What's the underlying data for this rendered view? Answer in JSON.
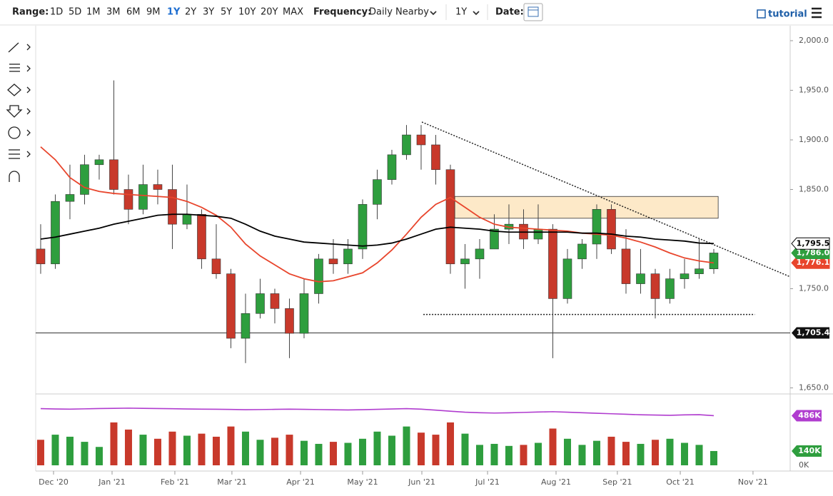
{
  "toolbar": {
    "range_label": "Range:",
    "ranges": [
      "1D",
      "5D",
      "1M",
      "3M",
      "6M",
      "9M",
      "1Y",
      "2Y",
      "3Y",
      "5Y",
      "10Y",
      "20Y",
      "MAX"
    ],
    "active_range": 6,
    "frequency_label": "Frequency:",
    "frequency": "Daily Nearby",
    "period": "1Y",
    "date_label": "Date:",
    "tutorial": "tutorial"
  },
  "chart_data": {
    "type": "candlestick",
    "xlim": [
      -0.34,
      51.22
    ],
    "xticks": [
      {
        "value": 0.88,
        "label": "Dec '20"
      },
      {
        "value": 4.88,
        "label": "Jan '21"
      },
      {
        "value": 9.17,
        "label": "Feb '21"
      },
      {
        "value": 13.07,
        "label": "Mar '21"
      },
      {
        "value": 17.76,
        "label": "Apr '21"
      },
      {
        "value": 22.0,
        "label": "May '21"
      },
      {
        "value": 26.05,
        "label": "Jun '21"
      },
      {
        "value": 30.54,
        "label": "Jul '21"
      },
      {
        "value": 35.22,
        "label": "Aug '21"
      },
      {
        "value": 39.41,
        "label": "Sep '21"
      },
      {
        "value": 43.71,
        "label": "Oct '21"
      },
      {
        "value": 48.68,
        "label": "Nov '21"
      }
    ],
    "ylim": [
      1643.9,
      2010.8
    ],
    "yticks": [
      {
        "value": 1650,
        "label": "1,650.0"
      },
      {
        "value": 1750,
        "label": "1,750.0"
      },
      {
        "value": 1850,
        "label": "1,850.0"
      },
      {
        "value": 1900,
        "label": "1,900.0"
      },
      {
        "value": 1950,
        "label": "1,950.0"
      },
      {
        "value": 2000,
        "label": "2,000.0"
      }
    ],
    "up_color": "#2e9e3e",
    "down_color": "#c8392b",
    "open": [
      1790,
      1775,
      1838,
      1845,
      1875,
      1880,
      1850,
      1830,
      1855,
      1850,
      1815,
      1825,
      1780,
      1765,
      1700,
      1725,
      1745,
      1730,
      1705,
      1745,
      1780,
      1775,
      1790,
      1835,
      1860,
      1885,
      1905,
      1895,
      1870,
      1775,
      1780,
      1790,
      1810,
      1815,
      1800,
      1810,
      1740,
      1780,
      1795,
      1830,
      1790,
      1755,
      1765,
      1740,
      1760,
      1765,
      1770
    ],
    "high": [
      1815,
      1845,
      1875,
      1885,
      1885,
      1960,
      1865,
      1875,
      1870,
      1875,
      1855,
      1830,
      1815,
      1770,
      1745,
      1760,
      1750,
      1740,
      1760,
      1785,
      1800,
      1800,
      1840,
      1870,
      1890,
      1915,
      1915,
      1905,
      1875,
      1795,
      1800,
      1825,
      1835,
      1830,
      1835,
      1815,
      1790,
      1800,
      1835,
      1835,
      1810,
      1790,
      1770,
      1770,
      1780,
      1800,
      1790
    ],
    "low": [
      1765,
      1770,
      1820,
      1835,
      1860,
      1845,
      1815,
      1825,
      1835,
      1790,
      1810,
      1770,
      1760,
      1690,
      1675,
      1720,
      1715,
      1680,
      1700,
      1735,
      1765,
      1765,
      1780,
      1820,
      1855,
      1880,
      1870,
      1855,
      1765,
      1750,
      1760,
      1790,
      1795,
      1790,
      1795,
      1680,
      1735,
      1770,
      1780,
      1785,
      1745,
      1745,
      1720,
      1735,
      1750,
      1760,
      1765
    ],
    "close": [
      1775,
      1838,
      1845,
      1875,
      1880,
      1850,
      1830,
      1855,
      1850,
      1815,
      1825,
      1780,
      1765,
      1700,
      1725,
      1745,
      1730,
      1705,
      1745,
      1780,
      1775,
      1790,
      1835,
      1860,
      1885,
      1905,
      1895,
      1870,
      1775,
      1780,
      1790,
      1810,
      1815,
      1800,
      1810,
      1740,
      1780,
      1795,
      1830,
      1790,
      1755,
      1765,
      1740,
      1760,
      1765,
      1770,
      1786
    ],
    "series": [
      {
        "color": "#e8452c",
        "values": [
          1893,
          1880,
          1862,
          1852,
          1848,
          1846,
          1845,
          1844,
          1843,
          1842,
          1838,
          1832,
          1824,
          1812,
          1795,
          1783,
          1774,
          1765,
          1760,
          1757,
          1758,
          1762,
          1766,
          1776,
          1789,
          1805,
          1822,
          1835,
          1842,
          1832,
          1822,
          1815,
          1812,
          1811,
          1810,
          1809,
          1808,
          1806,
          1805,
          1804,
          1801,
          1797,
          1792,
          1786,
          1781,
          1778,
          1776
        ]
      },
      {
        "color": "#000000",
        "values": [
          1800,
          1802,
          1805,
          1808,
          1811,
          1815,
          1818,
          1821,
          1824,
          1825,
          1825,
          1824,
          1823,
          1821,
          1815,
          1808,
          1803,
          1800,
          1797,
          1796,
          1795,
          1794,
          1793,
          1794,
          1796,
          1800,
          1805,
          1810,
          1812,
          1811,
          1810,
          1808,
          1807,
          1807,
          1807,
          1807,
          1807,
          1806,
          1806,
          1805,
          1803,
          1802,
          1800,
          1799,
          1798,
          1796,
          1795.5
        ]
      }
    ],
    "last_labels": [
      {
        "value": 1776.1,
        "label": "1,776.1",
        "bg": "#e8452c",
        "fg": "#ffffff"
      },
      {
        "value": 1786.0,
        "label": "1,786.0",
        "bg": "#2e9e3e",
        "fg": "#ffffff"
      },
      {
        "value": 1795.5,
        "label": "1,795.5",
        "bg": "#ffffff",
        "fg": "#000000"
      }
    ],
    "level": {
      "value": 1705.4,
      "label": "1,705.4"
    },
    "zone": {
      "x": [
        28.3,
        46.3
      ],
      "y": [
        1821,
        1843
      ],
      "color": "#fde9c8"
    },
    "trendline": {
      "x": [
        26.05,
        51.22
      ],
      "y": [
        1918,
        1762
      ]
    },
    "support": {
      "x": [
        26.15,
        48.8
      ],
      "y": [
        1724,
        1724
      ]
    },
    "volume": {
      "ylim": [
        0,
        622
      ],
      "yticks": [
        {
          "value": 0,
          "label": "0K"
        }
      ],
      "values": [
        250,
        300,
        280,
        230,
        180,
        420,
        350,
        300,
        260,
        330,
        290,
        310,
        280,
        380,
        330,
        250,
        270,
        300,
        240,
        210,
        230,
        220,
        260,
        330,
        290,
        380,
        320,
        300,
        420,
        310,
        200,
        210,
        190,
        200,
        220,
        360,
        260,
        200,
        240,
        280,
        230,
        210,
        250,
        260,
        220,
        200,
        140
      ],
      "ma_color": "#b03ccf",
      "ma": [
        555,
        552,
        550,
        553,
        556,
        558,
        560,
        558,
        556,
        554,
        552,
        550,
        549,
        547,
        545,
        546,
        548,
        550,
        548,
        546,
        544,
        542,
        545,
        548,
        552,
        555,
        550,
        540,
        530,
        520,
        515,
        512,
        514,
        518,
        522,
        525,
        520,
        515,
        510,
        505,
        500,
        495,
        492,
        490,
        494,
        496,
        486
      ],
      "labels": [
        {
          "value": 486,
          "label": "486K",
          "bg": "#b03ccf"
        },
        {
          "value": 140,
          "label": "140K",
          "bg": "#2e9e3e"
        }
      ]
    }
  }
}
